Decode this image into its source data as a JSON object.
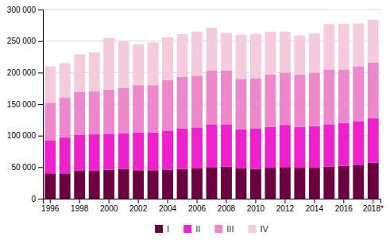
{
  "chart_data": {
    "type": "bar",
    "stacked": true,
    "categories": [
      "1996",
      null,
      "1998",
      null,
      "2000",
      null,
      "2002",
      null,
      "2004",
      null,
      "2006",
      null,
      "2008",
      null,
      "2010",
      null,
      "2012",
      null,
      "2014",
      null,
      "2016",
      null,
      "2018*"
    ],
    "series": [
      {
        "name": "I",
        "color": "#6a0040",
        "values": [
          40000,
          40000,
          44000,
          44000,
          46000,
          47000,
          45000,
          45000,
          46000,
          47000,
          48000,
          50000,
          51000,
          48000,
          47000,
          49000,
          50000,
          49000,
          49000,
          51000,
          52000,
          53000,
          57000
        ]
      },
      {
        "name": "II",
        "color": "#ee22cc",
        "values": [
          52000,
          57000,
          57000,
          58000,
          57000,
          57000,
          60000,
          60000,
          62000,
          64000,
          65000,
          68000,
          67000,
          62000,
          64000,
          65000,
          67000,
          65000,
          66000,
          67000,
          68000,
          70000,
          71000
        ]
      },
      {
        "name": "III",
        "color": "#ee88cc",
        "values": [
          60000,
          63000,
          68000,
          68000,
          70000,
          72000,
          75000,
          75000,
          80000,
          82000,
          82000,
          85000,
          85000,
          80000,
          80000,
          83000,
          83000,
          83000,
          85000,
          87000,
          85000,
          87000,
          88000
        ]
      },
      {
        "name": "IV",
        "color": "#f5ccdd",
        "values": [
          58000,
          55000,
          60000,
          62000,
          82000,
          74000,
          65000,
          68000,
          68000,
          68000,
          70000,
          68000,
          60000,
          70000,
          70000,
          68000,
          65000,
          62000,
          62000,
          72000,
          72000,
          68000,
          68000
        ]
      }
    ],
    "ylim": [
      0,
      300000
    ],
    "yticks": [
      0,
      {
        "value": 50000,
        "label": "50 000"
      },
      {
        "value": 100000,
        "label": "100 000"
      },
      {
        "value": 150000,
        "label": "150 000"
      },
      {
        "value": 200000,
        "label": "200 000"
      },
      {
        "value": 250000,
        "label": "250 000"
      },
      {
        "value": 300000,
        "label": "300 000"
      }
    ],
    "grid": true,
    "legend": "bottom"
  }
}
